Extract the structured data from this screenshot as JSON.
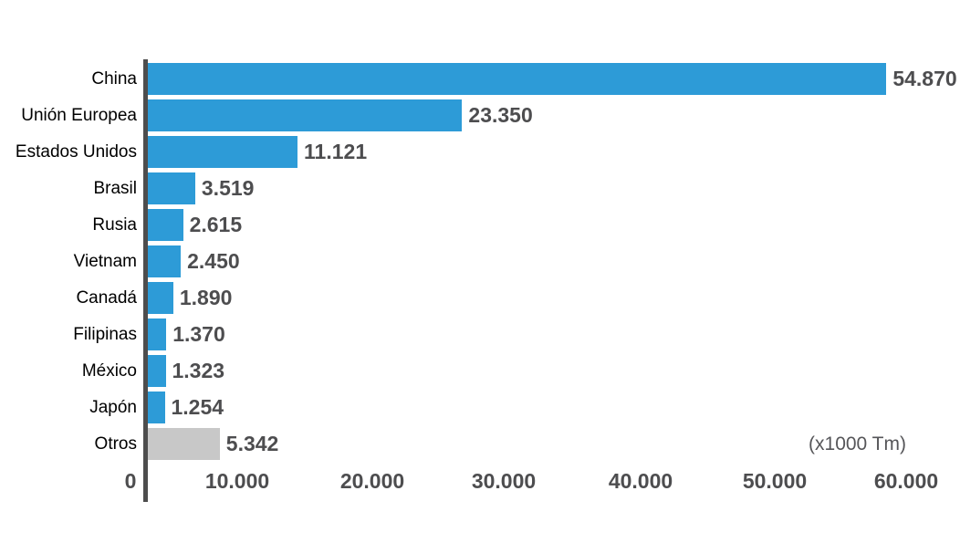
{
  "chart_data": {
    "type": "bar",
    "orientation": "horizontal",
    "title": "",
    "xlabel": "",
    "ylabel": "",
    "categories": [
      "China",
      "Unión Europea",
      "Estados Unidos",
      "Brasil",
      "Rusia",
      "Vietnam",
      "Canadá",
      "Filipinas",
      "México",
      "Japón",
      "Otros"
    ],
    "values": [
      54870,
      23350,
      11121,
      3519,
      2615,
      2450,
      1890,
      1370,
      1323,
      1254,
      5342
    ],
    "value_labels": [
      "54.870",
      "23.350",
      "11.121",
      "3.519",
      "2.615",
      "2.450",
      "1.890",
      "1.370",
      "1.323",
      "1.254",
      "5.342"
    ],
    "bar_colors": [
      "#2d9bd7",
      "#2d9bd7",
      "#2d9bd7",
      "#2d9bd7",
      "#2d9bd7",
      "#2d9bd7",
      "#2d9bd7",
      "#2d9bd7",
      "#2d9bd7",
      "#2d9bd7",
      "#c8c8c8"
    ],
    "x_ticks": [
      "0",
      "10.000",
      "20.000",
      "30.000",
      "40.000",
      "50.000",
      "60.000"
    ],
    "x_tick_values": [
      0,
      10000,
      20000,
      30000,
      40000,
      50000,
      60000
    ],
    "xlim": [
      0,
      60000
    ],
    "grid": false,
    "legend": "none",
    "unit_annotation": "(x1000 Tm)",
    "accent_color": "#2d9bd7",
    "other_color": "#c8c8c8",
    "axis_color": "#4d4d4d",
    "value_text_color": "#4d4d4f",
    "category_text_color": "#000000"
  }
}
